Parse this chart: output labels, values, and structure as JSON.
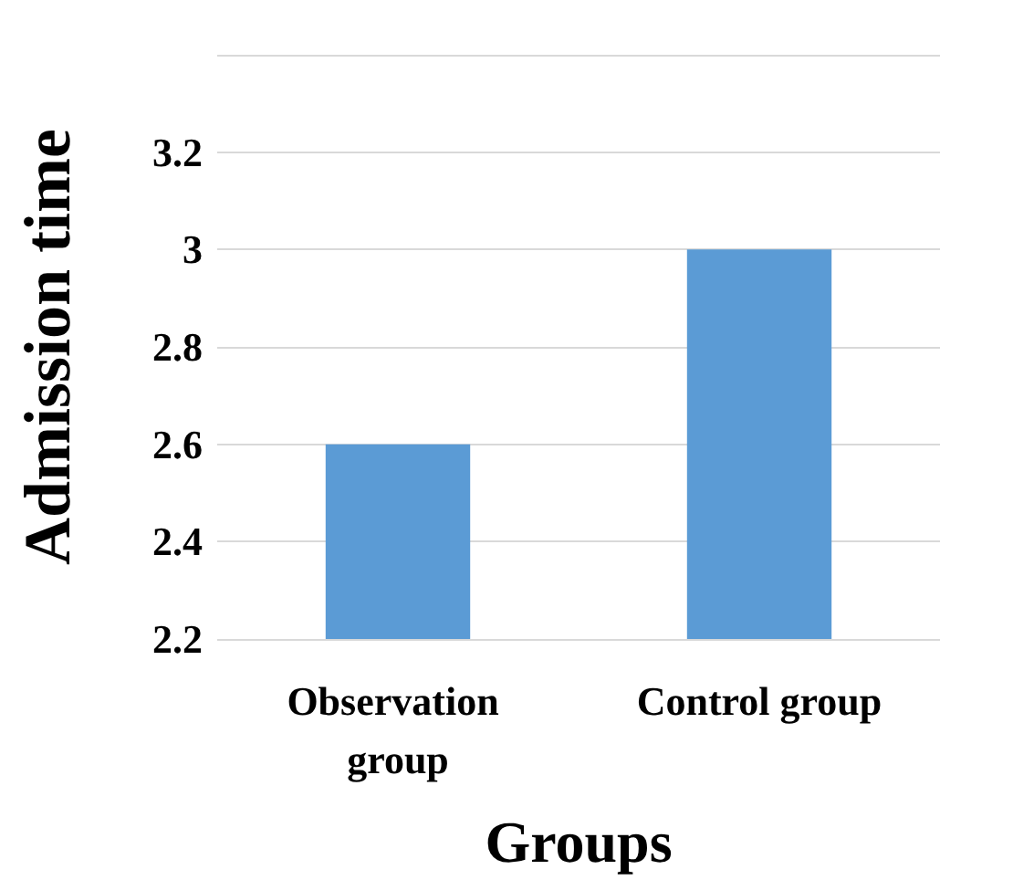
{
  "chart_data": {
    "type": "bar",
    "xlabel": "Groups",
    "ylabel": "Admission time",
    "categories": [
      "Observation group",
      "Control group"
    ],
    "values": [
      2.6,
      3.0
    ],
    "color": "#5b9bd5",
    "ylim": [
      2.2,
      3.4
    ],
    "yticks": [
      2.2,
      2.4,
      2.6,
      2.8,
      3,
      3.2,
      {
        "value": 3.4,
        "label": null
      }
    ],
    "grid": "y"
  }
}
